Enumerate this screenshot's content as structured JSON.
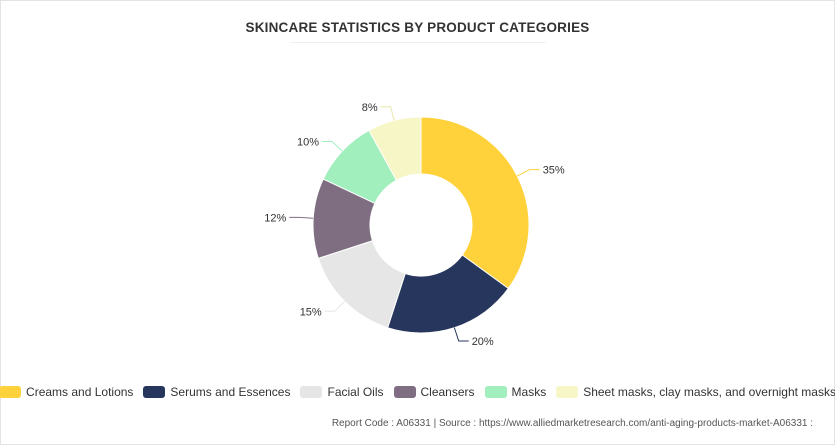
{
  "colors": {
    "creams": "#ffd13b",
    "serums": "#27365c",
    "facial_oils": "#e6e6e6",
    "cleansers": "#7f6e82",
    "masks": "#a1efbd",
    "sheet_masks": "#f6f6c6"
  },
  "chart_data": {
    "type": "pie",
    "donut": true,
    "title": "SKINCARE STATISTICS BY PRODUCT CATEGORIES",
    "categories": [
      "Creams and Lotions",
      "Serums and Essences",
      "Facial Oils",
      "Cleansers",
      "Masks",
      "Sheet masks, clay masks, and overnight masks"
    ],
    "values": [
      35,
      20,
      15,
      12,
      10,
      8
    ],
    "data_labels": [
      "35%",
      "20%",
      "15%",
      "12%",
      "10%",
      "8%"
    ],
    "legend_position": "bottom"
  },
  "footer": {
    "report_code": "Report Code : A06331  |  Source : https://www.alliedmarketresearch.com/anti-aging-products-market-A06331 :"
  }
}
